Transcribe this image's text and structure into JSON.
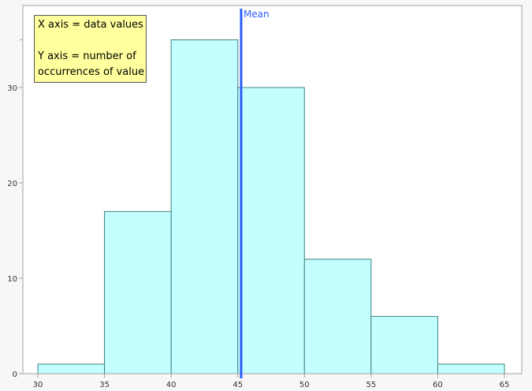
{
  "chart_data": {
    "type": "bar",
    "subtype": "histogram",
    "bin_edges": [
      30,
      35,
      40,
      45,
      50,
      55,
      60,
      65
    ],
    "values": [
      1,
      17,
      35,
      30,
      12,
      6,
      1
    ],
    "xlim": [
      30,
      65
    ],
    "ylim": [
      0,
      38.6
    ],
    "x_ticks": [
      30,
      35,
      40,
      45,
      50,
      55,
      60,
      65
    ],
    "y_ticks": [
      0,
      10,
      20,
      30
    ],
    "y_minor_ticks": [
      35
    ],
    "grid": false,
    "bar_fill": "#c4ffff",
    "bar_edge": "#3f8080",
    "mean": {
      "value": 45.25,
      "label": "Mean",
      "color": "#2a5cff"
    },
    "annotation": {
      "lines": [
        "X axis = data values",
        "",
        "Y axis = number of",
        "occurrences of value"
      ],
      "background": "#ffff9e"
    }
  }
}
